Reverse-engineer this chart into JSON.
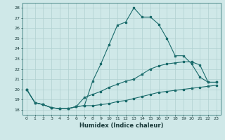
{
  "xlabel": "Humidex (Indice chaleur)",
  "background_color": "#cfe8e8",
  "grid_color": "#b0d0d0",
  "line_color": "#1a6b6b",
  "x": [
    0,
    1,
    2,
    3,
    4,
    5,
    6,
    7,
    8,
    9,
    10,
    11,
    12,
    13,
    14,
    15,
    16,
    17,
    18,
    19,
    20,
    21,
    22,
    23
  ],
  "line1": [
    20,
    18.7,
    18.5,
    18.2,
    18.1,
    18.1,
    18.3,
    18.4,
    20.8,
    22.5,
    24.4,
    26.3,
    26.6,
    28.0,
    27.1,
    27.1,
    26.4,
    25.0,
    23.3,
    23.3,
    22.5,
    21.2,
    20.7,
    20.7
  ],
  "line2": [
    20,
    18.7,
    18.5,
    18.2,
    18.1,
    18.1,
    18.3,
    19.2,
    19.5,
    19.8,
    20.2,
    20.5,
    20.8,
    21.0,
    21.5,
    22.0,
    22.3,
    22.5,
    22.6,
    22.7,
    22.7,
    22.4,
    20.7,
    20.7
  ],
  "line3": [
    20,
    18.7,
    18.5,
    18.2,
    18.1,
    18.1,
    18.3,
    18.4,
    18.4,
    18.5,
    18.6,
    18.8,
    18.9,
    19.1,
    19.3,
    19.5,
    19.7,
    19.8,
    19.9,
    20.0,
    20.1,
    20.2,
    20.3,
    20.4
  ],
  "ylim": [
    17.5,
    28.5
  ],
  "yticks": [
    18,
    19,
    20,
    21,
    22,
    23,
    24,
    25,
    26,
    27,
    28
  ],
  "xticks": [
    0,
    1,
    2,
    3,
    4,
    5,
    6,
    7,
    8,
    9,
    10,
    11,
    12,
    13,
    14,
    15,
    16,
    17,
    18,
    19,
    20,
    21,
    22,
    23
  ]
}
